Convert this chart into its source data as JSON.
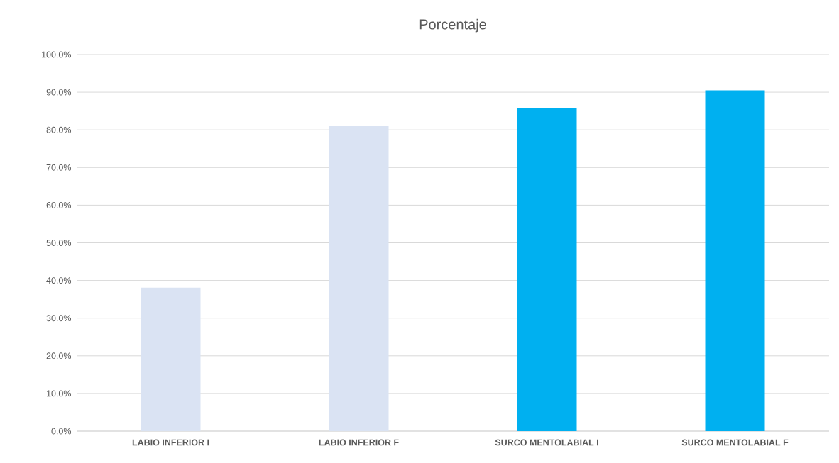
{
  "chart_data": {
    "type": "bar",
    "title": "Porcentaje",
    "categories": [
      "LABIO INFERIOR I",
      "LABIO INFERIOR F",
      "SURCO MENTOLABIAL I",
      "SURCO MENTOLABIAL F"
    ],
    "values": [
      38.1,
      81.0,
      85.7,
      90.5
    ],
    "colors": [
      "#dae3f3",
      "#dae3f3",
      "#00b0f0",
      "#00b0f0"
    ],
    "ylim": [
      0,
      100
    ],
    "yticks": [
      {
        "value": 0,
        "label": "0.0%"
      },
      {
        "value": 10,
        "label": "10.0%"
      },
      {
        "value": 20,
        "label": "20.0%"
      },
      {
        "value": 30,
        "label": "30.0%"
      },
      {
        "value": 40,
        "label": "40.0%"
      },
      {
        "value": 50,
        "label": "50.0%"
      },
      {
        "value": 60,
        "label": "60.0%"
      },
      {
        "value": 70,
        "label": "70.0%"
      },
      {
        "value": 80,
        "label": "80.0%"
      },
      {
        "value": 90,
        "label": "90.0%"
      },
      {
        "value": 100,
        "label": "100.0%"
      }
    ],
    "grid": "y"
  }
}
